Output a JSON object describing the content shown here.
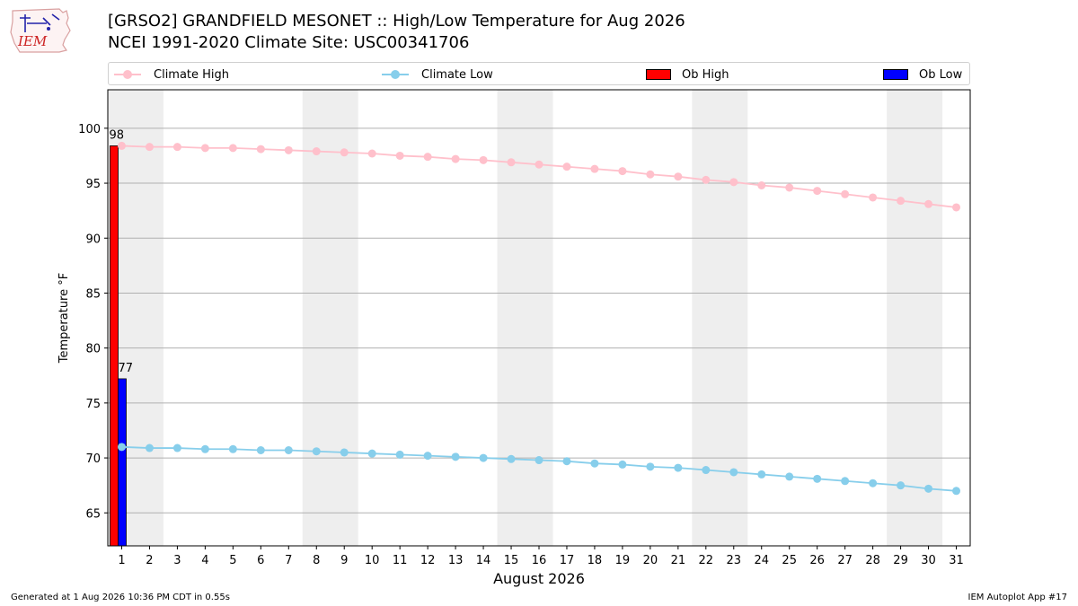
{
  "header": {
    "title_line1": "[GRSO2] GRANDFIELD MESONET :: High/Low Temperature for Aug 2026",
    "title_line2": "NCEI 1991-2020 Climate Site: USC00341706",
    "logo_text": "IEM"
  },
  "legend": {
    "climate_high": "Climate High",
    "climate_low": "Climate Low",
    "ob_high": "Ob High",
    "ob_low": "Ob Low"
  },
  "colors": {
    "climate_high": "#ffc0cb",
    "climate_low": "#87ceeb",
    "ob_high": "#ff0000",
    "ob_low": "#0000ff",
    "weekend_shade": "#eeeeee",
    "grid": "#b0b0b0"
  },
  "chart_data": {
    "type": "bar",
    "xlabel": "August 2026",
    "ylabel": "Temperature °F",
    "xlim": [
      0.5,
      31.5
    ],
    "ylim": [
      62,
      103.5
    ],
    "yticks": [
      65,
      70,
      75,
      80,
      85,
      90,
      95,
      100
    ],
    "x": [
      1,
      2,
      3,
      4,
      5,
      6,
      7,
      8,
      9,
      10,
      11,
      12,
      13,
      14,
      15,
      16,
      17,
      18,
      19,
      20,
      21,
      22,
      23,
      24,
      25,
      26,
      27,
      28,
      29,
      30,
      31
    ],
    "weekend_shading": [
      [
        0.5,
        2.5
      ],
      [
        7.5,
        9.5
      ],
      [
        14.5,
        16.5
      ],
      [
        21.5,
        23.5
      ],
      [
        28.5,
        30.5
      ]
    ],
    "grid": "horizontal",
    "legend_position": "top",
    "series": [
      {
        "name": "Climate High",
        "type": "line",
        "values": [
          98.4,
          98.3,
          98.3,
          98.2,
          98.2,
          98.1,
          98.0,
          97.9,
          97.8,
          97.7,
          97.5,
          97.4,
          97.2,
          97.1,
          96.9,
          96.7,
          96.5,
          96.3,
          96.1,
          95.8,
          95.6,
          95.3,
          95.1,
          94.8,
          94.6,
          94.3,
          94.0,
          93.7,
          93.4,
          93.1,
          92.8
        ]
      },
      {
        "name": "Climate Low",
        "type": "line",
        "values": [
          71.0,
          70.9,
          70.9,
          70.8,
          70.8,
          70.7,
          70.7,
          70.6,
          70.5,
          70.4,
          70.3,
          70.2,
          70.1,
          70.0,
          69.9,
          69.8,
          69.7,
          69.5,
          69.4,
          69.2,
          69.1,
          68.9,
          68.7,
          68.5,
          68.3,
          68.1,
          67.9,
          67.7,
          67.5,
          67.2,
          67.0
        ]
      },
      {
        "name": "Ob High",
        "type": "bar",
        "x": [
          1
        ],
        "values": [
          98.4
        ],
        "labels": [
          "98"
        ]
      },
      {
        "name": "Ob Low",
        "type": "bar",
        "x": [
          1
        ],
        "values": [
          77.2
        ],
        "labels": [
          "77"
        ]
      }
    ]
  },
  "footer": {
    "left": "Generated at 1 Aug 2026 10:36 PM CDT in 0.55s",
    "right": "IEM Autoplot App #17"
  }
}
